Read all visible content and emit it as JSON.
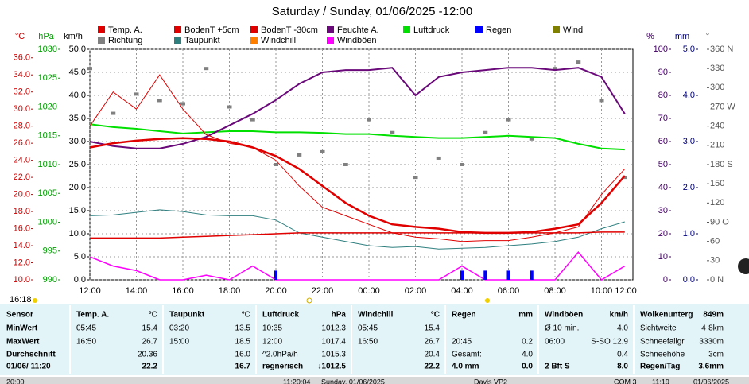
{
  "chart_data": {
    "type": "line",
    "title": "Saturday / Sunday, 01/06/2025  -12:00",
    "x": [
      0,
      1,
      2,
      3,
      4,
      5,
      6,
      7,
      8,
      9,
      10,
      11,
      12,
      13,
      14,
      15,
      16,
      17,
      18,
      19,
      20,
      21,
      22,
      23
    ],
    "xlim": [
      0,
      23.35
    ],
    "xticks": [
      {
        "value": 0,
        "label": "12:00"
      },
      {
        "value": 2,
        "label": "14:00"
      },
      {
        "value": 4,
        "label": "16:00"
      },
      {
        "value": 6,
        "label": "18:00"
      },
      {
        "value": 8,
        "label": "20:00"
      },
      {
        "value": 10,
        "label": "22:00"
      },
      {
        "value": 12,
        "label": "00:00"
      },
      {
        "value": 14,
        "label": "02:00"
      },
      {
        "value": 16,
        "label": "04:00"
      },
      {
        "value": 18,
        "label": "06:00"
      },
      {
        "value": 20,
        "label": "08:00"
      },
      {
        "value": 22,
        "label": "10:00"
      },
      {
        "value": 24,
        "label": "12:00"
      }
    ],
    "grid": true,
    "axes": {
      "C": {
        "label": "°C",
        "color": "#d00000",
        "lim": [
          10,
          37
        ],
        "ticks": [
          {
            "value": 10,
            "label": "10.0"
          },
          {
            "value": 12,
            "label": "12.0"
          },
          {
            "value": 14,
            "label": "14.0"
          },
          {
            "value": 16,
            "label": "16.0"
          },
          {
            "value": 18,
            "label": "18.0"
          },
          {
            "value": 20,
            "label": "20.0"
          },
          {
            "value": 22,
            "label": "22.0"
          },
          {
            "value": 24,
            "label": "24.0"
          },
          {
            "value": 26,
            "label": "26.0"
          },
          {
            "value": 28,
            "label": "28.0"
          },
          {
            "value": 30,
            "label": "30.0"
          },
          {
            "value": 32,
            "label": "32.0"
          },
          {
            "value": 34,
            "label": "34.0"
          },
          {
            "value": 36,
            "label": "36.0"
          }
        ]
      },
      "hPa": {
        "label": "hPa",
        "color": "#00a000",
        "lim": [
          990,
          1030
        ],
        "ticks": [
          990,
          995,
          1000,
          1005,
          1010,
          1015,
          1020,
          1025,
          1030
        ]
      },
      "kmh": {
        "label": "km/h",
        "color": "#000000",
        "lim": [
          0,
          50
        ],
        "ticks": [
          {
            "value": 0,
            "label": "0.0"
          },
          {
            "value": 5,
            "label": "5.0"
          },
          {
            "value": 10,
            "label": "10.0"
          },
          {
            "value": 15,
            "label": "15.0"
          },
          {
            "value": 20,
            "label": "20.0"
          },
          {
            "value": 25,
            "label": "25.0"
          },
          {
            "value": 30,
            "label": "30.0"
          },
          {
            "value": 35,
            "label": "35.0"
          },
          {
            "value": 40,
            "label": "40.0"
          },
          {
            "value": 45,
            "label": "45.0"
          },
          {
            "value": 50,
            "label": "50.0"
          }
        ]
      },
      "pct": {
        "label": "%",
        "color": "#400060",
        "lim": [
          0,
          100
        ],
        "ticks": [
          0,
          10,
          20,
          30,
          40,
          50,
          60,
          70,
          80,
          90,
          100
        ]
      },
      "mm": {
        "label": "mm",
        "color": "#000080",
        "lim": [
          0,
          5
        ],
        "ticks": [
          {
            "value": 0,
            "label": "0.0"
          },
          {
            "value": 1,
            "label": "1.0"
          },
          {
            "value": 2,
            "label": "2.0"
          },
          {
            "value": 3,
            "label": "3.0"
          },
          {
            "value": 4,
            "label": "4.0"
          },
          {
            "value": 5,
            "label": "5.0"
          }
        ]
      },
      "deg": {
        "label": "°",
        "color": "#555555",
        "lim": [
          0,
          360
        ],
        "ticks": [
          {
            "value": 0,
            "label": "0 N"
          },
          30,
          60,
          {
            "value": 90,
            "label": "90 O"
          },
          120,
          150,
          {
            "value": 180,
            "label": "180 S"
          },
          210,
          240,
          {
            "value": 270,
            "label": "270 W"
          },
          300,
          330,
          {
            "value": 360,
            "label": "360 N"
          }
        ]
      }
    },
    "series": [
      {
        "name": "Temp. A.",
        "color": "#e00000",
        "axis": "C",
        "kind": "line",
        "values": [
          25.5,
          26,
          26.3,
          26.5,
          26.6,
          26.5,
          26.2,
          25.5,
          24.5,
          23,
          21,
          19,
          17.5,
          16.5,
          16.2,
          16,
          15.6,
          15.5,
          15.5,
          15.6,
          16,
          16.5,
          19,
          22.2
        ]
      },
      {
        "name": "BodenT +5cm",
        "color": "#e00000",
        "axis": "C",
        "kind": "line",
        "values": [
          28,
          32,
          30,
          34,
          30,
          27,
          26,
          25.5,
          24,
          21,
          18.5,
          17.5,
          16.5,
          15.5,
          15,
          14.8,
          14.5,
          14.6,
          14.6,
          15,
          15.5,
          16.2,
          20,
          23
        ]
      },
      {
        "name": "BodenT -30cm",
        "color": "#e00000",
        "axis": "C",
        "kind": "line",
        "values": [
          14.9,
          14.9,
          14.9,
          14.9,
          15,
          15.1,
          15.2,
          15.3,
          15.4,
          15.5,
          15.5,
          15.5,
          15.5,
          15.5,
          15.5,
          15.5,
          15.5,
          15.5,
          15.5,
          15.5,
          15.5,
          15.5,
          15.6,
          15.6
        ]
      },
      {
        "name": "Feuchte A.",
        "color": "#6a0a7a",
        "axis": "pct",
        "kind": "line",
        "values": [
          60,
          58,
          57,
          57,
          59,
          62,
          67,
          72,
          78,
          85,
          90,
          91,
          91,
          92,
          80,
          88,
          90,
          91,
          92,
          92,
          91,
          92,
          88,
          72
        ]
      },
      {
        "name": "Luftdruck",
        "color": "#00e000",
        "axis": "hPa",
        "kind": "line",
        "values": [
          1017,
          1016.5,
          1016.2,
          1015.8,
          1015.4,
          1015.6,
          1015.8,
          1015.8,
          1015.6,
          1015.6,
          1015.5,
          1015.3,
          1015.3,
          1015,
          1014.8,
          1014.6,
          1014.6,
          1014.8,
          1015,
          1014.8,
          1014.6,
          1013.6,
          1012.8,
          1012.6
        ]
      },
      {
        "name": "Regen",
        "color": "#0000ff",
        "axis": "mm",
        "kind": "bar",
        "values": [
          0,
          0,
          0,
          0,
          0,
          0,
          0,
          0,
          0.2,
          0,
          0,
          0,
          0,
          0,
          0,
          0,
          0.2,
          0.2,
          0.2,
          0.2,
          0,
          0,
          0,
          0
        ]
      },
      {
        "name": "Wind",
        "color": "#808000",
        "axis": "kmh",
        "kind": "line",
        "values": [
          null,
          null,
          null,
          null,
          null,
          null,
          null,
          null,
          null,
          null,
          null,
          null,
          null,
          null,
          null,
          null,
          null,
          null,
          null,
          null,
          null,
          null,
          null,
          null
        ]
      },
      {
        "name": "Richtung",
        "color": "#808080",
        "axis": "deg",
        "kind": "scatter",
        "values": [
          330,
          260,
          290,
          280,
          275,
          330,
          270,
          250,
          180,
          195,
          200,
          180,
          250,
          230,
          160,
          190,
          180,
          230,
          250,
          220,
          330,
          340,
          280,
          160
        ]
      },
      {
        "name": "Taupunkt",
        "color": "#2f7f7f",
        "axis": "C",
        "kind": "line",
        "values": [
          17.5,
          17.6,
          17.9,
          18.2,
          18,
          17.6,
          17.5,
          17.5,
          17,
          15.5,
          15,
          14.5,
          14,
          13.8,
          13.9,
          13.6,
          13.7,
          13.8,
          14,
          14.2,
          14.5,
          15,
          16,
          16.8
        ]
      },
      {
        "name": "Windchill",
        "color": "#ff8000",
        "axis": "C",
        "kind": "line",
        "values": [
          25.5,
          26,
          26.3,
          26.5,
          26.6,
          26.5,
          26.2,
          25.5,
          24.5,
          23,
          21,
          19,
          17.5,
          16.5,
          16.2,
          16,
          15.6,
          15.5,
          15.5,
          15.6,
          16,
          16.5,
          19,
          22.2
        ]
      },
      {
        "name": "Windböen",
        "color": "#ff00ff",
        "axis": "kmh",
        "kind": "line",
        "values": [
          5,
          3,
          2,
          0,
          0,
          1,
          0,
          3,
          0,
          0,
          0,
          0,
          0,
          0,
          0,
          0,
          3,
          0,
          0,
          0,
          0,
          6,
          0,
          3
        ]
      }
    ]
  },
  "time_marker": "16:18",
  "table": {
    "columns": [
      {
        "rows": [
          [
            "Sensor"
          ],
          [
            "MinWert"
          ],
          [
            "MaxWert"
          ],
          [
            "Durchschnitt"
          ],
          [
            "01/06/ 11:20"
          ]
        ]
      },
      {
        "rows": [
          [
            "Temp. A.",
            "°C"
          ],
          [
            "05:45",
            "15.4"
          ],
          [
            "16:50",
            "26.7"
          ],
          [
            "20.36"
          ],
          [
            "22.2"
          ]
        ]
      },
      {
        "rows": [
          [
            "Taupunkt",
            "°C"
          ],
          [
            "03:20",
            "13.5"
          ],
          [
            "15:00",
            "18.5"
          ],
          [
            "16.0"
          ],
          [
            "16.7"
          ]
        ]
      },
      {
        "rows": [
          [
            "Luftdruck",
            "hPa"
          ],
          [
            "10:35",
            "1012.3"
          ],
          [
            "12:00",
            "1017.4"
          ],
          [
            "^2.0hPa/h",
            "1015.3"
          ],
          [
            "regnerisch",
            "↓1012.5"
          ]
        ]
      },
      {
        "rows": [
          [
            "Windchill",
            "°C"
          ],
          [
            "05:45",
            "15.4"
          ],
          [
            "16:50",
            "26.7"
          ],
          [
            "20.4"
          ],
          [
            "22.2"
          ]
        ]
      },
      {
        "rows": [
          [
            "Regen",
            "mm"
          ],
          [],
          [
            "20:45",
            "0.2"
          ],
          [
            "Gesamt:",
            "4.0"
          ],
          [
            "4.0 mm",
            "0.0"
          ]
        ]
      },
      {
        "rows": [
          [
            "Windböen",
            "km/h"
          ],
          [
            "Ø 10 min.",
            "4.0"
          ],
          [
            "06:00",
            "S-SO 12.9"
          ],
          [
            "0.4"
          ],
          [
            "2 Bft S",
            "8.0"
          ]
        ]
      },
      {
        "rows": [
          [
            "Wolkenunterg",
            "849m"
          ],
          [
            "Sichtweite",
            "4-8km"
          ],
          [
            "Schneefallgr",
            "3330m"
          ],
          [
            "Schneehöhe",
            "3cm"
          ],
          [
            "Regen/Tag",
            "3.6mm"
          ]
        ]
      }
    ]
  },
  "status": [
    "20:00",
    "11:20:04",
    "Sunday, 01/06/2025",
    "Davis VP2",
    "COM 3",
    "11:19",
    "01/06/2025"
  ]
}
